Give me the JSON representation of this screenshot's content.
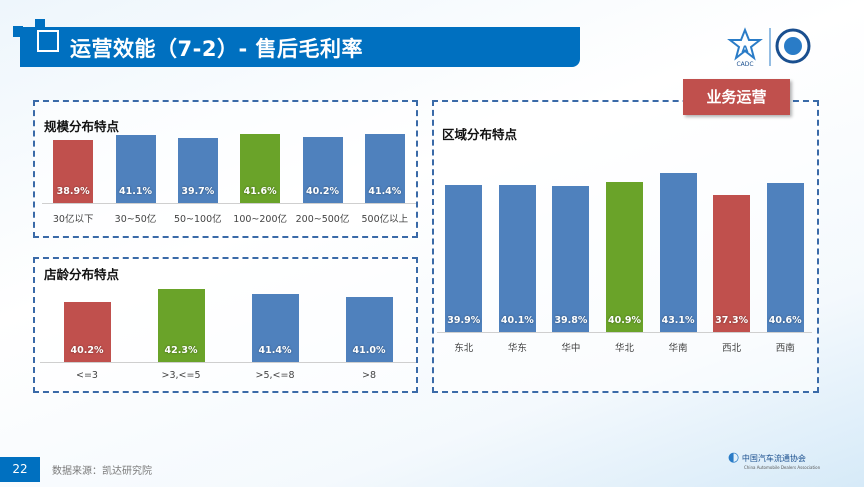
{
  "header": {
    "title": "运营效能（7-2）- 售后毛利率",
    "tag": "业务运营",
    "logo_text": "CADC"
  },
  "colors": {
    "blue": "#4f81bd",
    "red": "#c0504d",
    "green": "#6aa329",
    "title_bar": "#0070c0"
  },
  "footer": {
    "page": "22",
    "source": "数据来源：凯达研究院",
    "logo_text": "中国汽车流通协会",
    "logo_subtext": "China Automobile Dealers Association"
  },
  "chart_data": [
    {
      "type": "bar",
      "title": "规模分布特点",
      "categories": [
        "30亿以下",
        "30~50亿",
        "50~100亿",
        "100~200亿",
        "200~500亿",
        "500亿以上"
      ],
      "values": [
        38.9,
        41.1,
        39.7,
        41.6,
        40.2,
        41.4
      ],
      "labels": [
        "38.9%",
        "41.1%",
        "39.7%",
        "41.6%",
        "40.2%",
        "41.4%"
      ],
      "bar_colors": [
        "red",
        "blue",
        "blue",
        "green",
        "blue",
        "blue"
      ],
      "ylim": [
        10,
        42
      ]
    },
    {
      "type": "bar",
      "title": "店龄分布特点",
      "categories": [
        "<=3",
        ">3,<=5",
        ">5,<=8",
        ">8"
      ],
      "values": [
        40.2,
        42.3,
        41.4,
        41.0
      ],
      "labels": [
        "40.2%",
        "42.3%",
        "41.4%",
        "41.0%"
      ],
      "bar_colors": [
        "red",
        "green",
        "blue",
        "blue"
      ],
      "ylim": [
        30,
        43
      ]
    },
    {
      "type": "bar",
      "title": "区域分布特点",
      "categories": [
        "东北",
        "华东",
        "华中",
        "华北",
        "华南",
        "西北",
        "西南"
      ],
      "values": [
        39.9,
        40.1,
        39.8,
        40.9,
        43.1,
        37.3,
        40.6
      ],
      "labels": [
        "39.9%",
        "40.1%",
        "39.8%",
        "40.9%",
        "43.1%",
        "37.3%",
        "40.6%"
      ],
      "bar_colors": [
        "blue",
        "blue",
        "blue",
        "green",
        "blue",
        "red",
        "blue"
      ],
      "ylim": [
        0,
        43.5
      ]
    }
  ]
}
